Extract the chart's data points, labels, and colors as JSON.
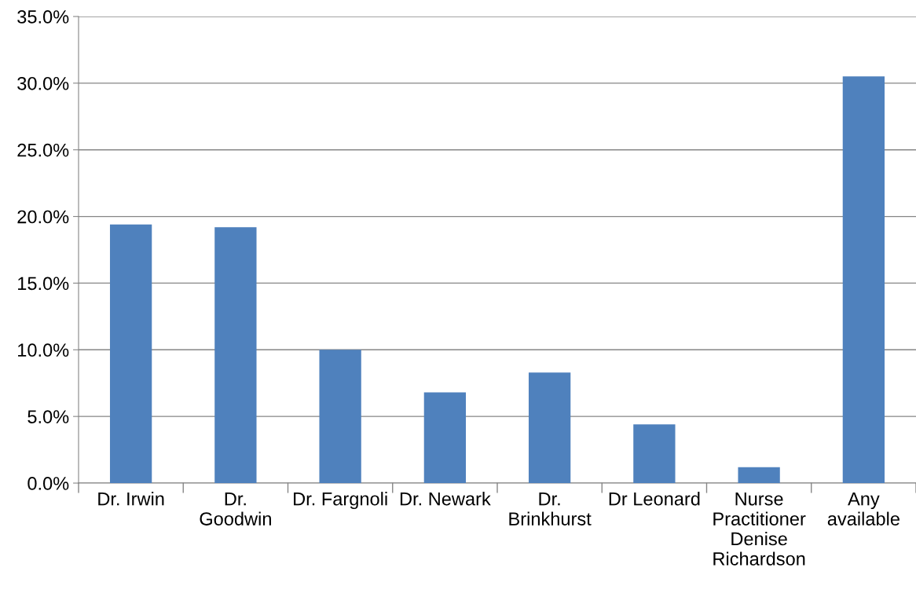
{
  "chart_data": {
    "type": "bar",
    "categories": [
      "Dr. Irwin",
      "Dr.\nGoodwin",
      "Dr. Fargnoli",
      "Dr. Newark",
      "Dr.\nBrinkhurst",
      "Dr Leonard",
      "Nurse\nPractitioner\nDenise\nRichardson",
      "Any\navailable"
    ],
    "values": [
      19.4,
      19.2,
      10.0,
      6.8,
      8.3,
      4.4,
      1.2,
      30.5
    ],
    "color": "#4f81bd",
    "ylim": [
      0,
      35
    ],
    "yticks": [
      {
        "value": 0,
        "label": "0.0%"
      },
      {
        "value": 5,
        "label": "5.0%"
      },
      {
        "value": 10,
        "label": "10.0%"
      },
      {
        "value": 15,
        "label": "15.0%"
      },
      {
        "value": 20,
        "label": "20.0%"
      },
      {
        "value": 25,
        "label": "25.0%"
      },
      {
        "value": 30,
        "label": "30.0%"
      },
      {
        "value": 35,
        "label": "35.0%"
      }
    ],
    "grid": "y",
    "legend": false
  }
}
